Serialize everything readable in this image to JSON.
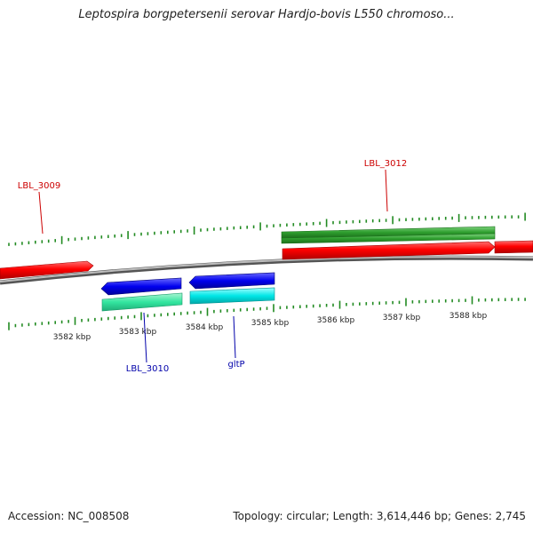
{
  "title": "Leptospira borgpetersenii serovar Hardjo-bovis L550 chromoso...",
  "footer": {
    "accession": "Accession: NC_008508",
    "summary": "Topology: circular; Length: 3,614,446 bp; Genes: 2,745"
  },
  "ruler": {
    "labels": [
      "3582 kbp",
      "3583 kbp",
      "3584 kbp",
      "3585 kbp",
      "3586 kbp",
      "3587 kbp",
      "3588 kbp"
    ]
  },
  "colors": {
    "backbone": "#8a8a8a",
    "tick": "#228b22",
    "forward_gene": "#ff0000",
    "forward_cds": "#2e9e2e",
    "reverse_gene": "#0000ee",
    "reverse_cds_a": "#33e6a0",
    "reverse_cds_b": "#00e6e6",
    "forward_label": "#cc0000",
    "reverse_label": "#0000aa"
  },
  "genes": [
    {
      "label": "LBL_3009",
      "strand": "forward"
    },
    {
      "label": "LBL_3012",
      "strand": "forward"
    },
    {
      "label": "LBL_3010",
      "strand": "reverse"
    },
    {
      "label": "gltP",
      "strand": "reverse"
    }
  ]
}
